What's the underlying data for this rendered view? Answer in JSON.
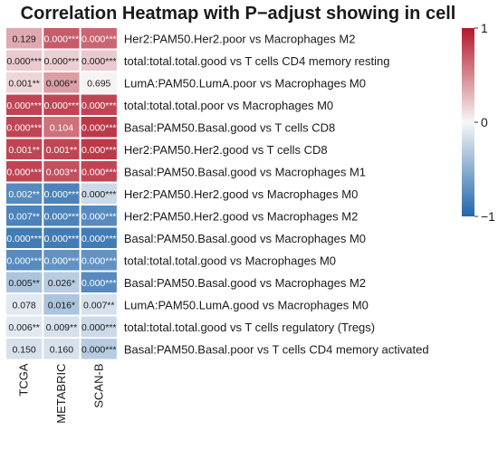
{
  "chart_data": {
    "type": "heatmap",
    "title": "Correlation Heatmap with P−adjust showing in cell",
    "columns": [
      "TCGA",
      "METABRIC",
      "SCAN-B"
    ],
    "rows": [
      "Her2:PAM50.Her2.poor vs Macrophages M2",
      "total:total.total.good vs T cells CD4 memory resting",
      "LumA:PAM50.LumA.poor vs Macrophages M0",
      "total:total.total.poor vs Macrophages M0",
      "Basal:PAM50.Basal.good vs T cells CD8",
      "Her2:PAM50.Her2.good vs T cells CD8",
      "Basal:PAM50.Basal.good vs Macrophages M1",
      "Her2:PAM50.Her2.good vs Macrophages M0",
      "Her2:PAM50.Her2.good vs Macrophages M2",
      "Basal:PAM50.Basal.good vs Macrophages M0",
      "total:total.total.good vs Macrophages M0",
      "Basal:PAM50.Basal.good vs Macrophages M2",
      "LumA:PAM50.LumA.good vs Macrophages M0",
      "total:total.total.good vs T cells regulatory (Tregs)",
      "Basal:PAM50.Basal.poor vs T cells CD4 memory activated"
    ],
    "values": [
      [
        0.35,
        0.7,
        0.65
      ],
      [
        0.2,
        0.18,
        0.2
      ],
      [
        0.15,
        0.4,
        0.02
      ],
      [
        0.8,
        0.8,
        0.8
      ],
      [
        0.8,
        0.6,
        0.85
      ],
      [
        0.8,
        0.8,
        0.85
      ],
      [
        0.8,
        0.75,
        0.8
      ],
      [
        -0.75,
        -0.8,
        -0.2
      ],
      [
        -0.8,
        -0.8,
        -0.75
      ],
      [
        -0.85,
        -0.85,
        -0.85
      ],
      [
        -0.75,
        -0.7,
        -0.7
      ],
      [
        -0.35,
        -0.3,
        -0.75
      ],
      [
        -0.1,
        -0.35,
        -0.15
      ],
      [
        -0.1,
        -0.15,
        -0.2
      ],
      [
        -0.15,
        -0.15,
        -0.3
      ]
    ],
    "cell_labels": [
      [
        "0.129",
        "0.000***",
        "0.000***"
      ],
      [
        "0.000***",
        "0.000***",
        "0.000***"
      ],
      [
        "0.001**",
        "0.006**",
        "0.695"
      ],
      [
        "0.000***",
        "0.000***",
        "0.000***"
      ],
      [
        "0.000***",
        "0.104",
        "0.000***"
      ],
      [
        "0.001**",
        "0.001**",
        "0.000***"
      ],
      [
        "0.000***",
        "0.003**",
        "0.000***"
      ],
      [
        "0.002**",
        "0.000***",
        "0.000***"
      ],
      [
        "0.007**",
        "0.000***",
        "0.000***"
      ],
      [
        "0.000***",
        "0.000***",
        "0.000***"
      ],
      [
        "0.000***",
        "0.000***",
        "0.000***"
      ],
      [
        "0.005**",
        "0.026*",
        "0.000***"
      ],
      [
        "0.078",
        "0.016*",
        "0.007**"
      ],
      [
        "0.006**",
        "0.009**",
        "0.000***"
      ],
      [
        "0.150",
        "0.160",
        "0.000***"
      ]
    ],
    "scale": {
      "min": -1,
      "max": 1,
      "ticks": [
        1,
        0,
        -1
      ],
      "tick_labels": [
        "1",
        "0",
        "−1"
      ]
    },
    "colors": {
      "low": "#2166ac",
      "mid": "#f7f7f7",
      "high": "#b2182b"
    },
    "legend_placement": "right"
  }
}
